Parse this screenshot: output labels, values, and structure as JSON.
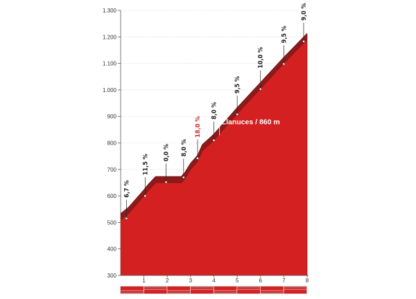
{
  "chart_data": {
    "type": "area",
    "title": "",
    "xlabel": "",
    "ylabel": "",
    "xlim": [
      0,
      8
    ],
    "ylim": [
      300,
      1300
    ],
    "y_ticks": [
      "300",
      "400",
      "500",
      "600",
      "700",
      "800",
      "900",
      "1.000",
      "1.100",
      "1.200",
      "1.300"
    ],
    "x_ticks": [
      "1",
      "2",
      "3",
      "4",
      "5",
      "6",
      "7",
      "8"
    ],
    "grid": true,
    "profile": [
      {
        "x": 0.0,
        "y": 510
      },
      {
        "x": 0.35,
        "y": 535
      },
      {
        "x": 1.0,
        "y": 600
      },
      {
        "x": 1.18,
        "y": 620
      },
      {
        "x": 1.5,
        "y": 650
      },
      {
        "x": 2.0,
        "y": 650
      },
      {
        "x": 2.6,
        "y": 650
      },
      {
        "x": 2.75,
        "y": 665
      },
      {
        "x": 3.0,
        "y": 700
      },
      {
        "x": 3.3,
        "y": 730
      },
      {
        "x": 3.5,
        "y": 770
      },
      {
        "x": 4.0,
        "y": 810
      },
      {
        "x": 5.0,
        "y": 910
      },
      {
        "x": 6.0,
        "y": 1005
      },
      {
        "x": 7.0,
        "y": 1100
      },
      {
        "x": 8.0,
        "y": 1190
      }
    ],
    "gradients": [
      {
        "x": 0.25,
        "y": 515,
        "label": "6,7 %",
        "color": "#222222"
      },
      {
        "x": 1.05,
        "y": 600,
        "label": "11,5 %",
        "color": "#222222"
      },
      {
        "x": 1.95,
        "y": 652,
        "label": "0,0 %",
        "color": "#222222"
      },
      {
        "x": 2.7,
        "y": 670,
        "label": "8,0 %",
        "color": "#222222"
      },
      {
        "x": 3.3,
        "y": 742,
        "label": "18,0 %",
        "color": "#d22b2b"
      },
      {
        "x": 4.0,
        "y": 810,
        "label": "8,0 %",
        "color": "#222222"
      },
      {
        "x": 5.0,
        "y": 908,
        "label": "9,5 %",
        "color": "#222222"
      },
      {
        "x": 6.0,
        "y": 1003,
        "label": "10,0 %",
        "color": "#222222"
      },
      {
        "x": 7.0,
        "y": 1098,
        "label": "9,5 %",
        "color": "#222222"
      },
      {
        "x": 7.85,
        "y": 1183,
        "label": "9,0 %",
        "color": "#222222"
      }
    ],
    "annotation": {
      "x": 4.6,
      "y": 860,
      "label": "Llanuces / 860 m"
    },
    "colors": {
      "fill": "#d42020",
      "top": "#8e1a1a",
      "grid": "#d9d9d9",
      "axis": "#555555"
    }
  }
}
